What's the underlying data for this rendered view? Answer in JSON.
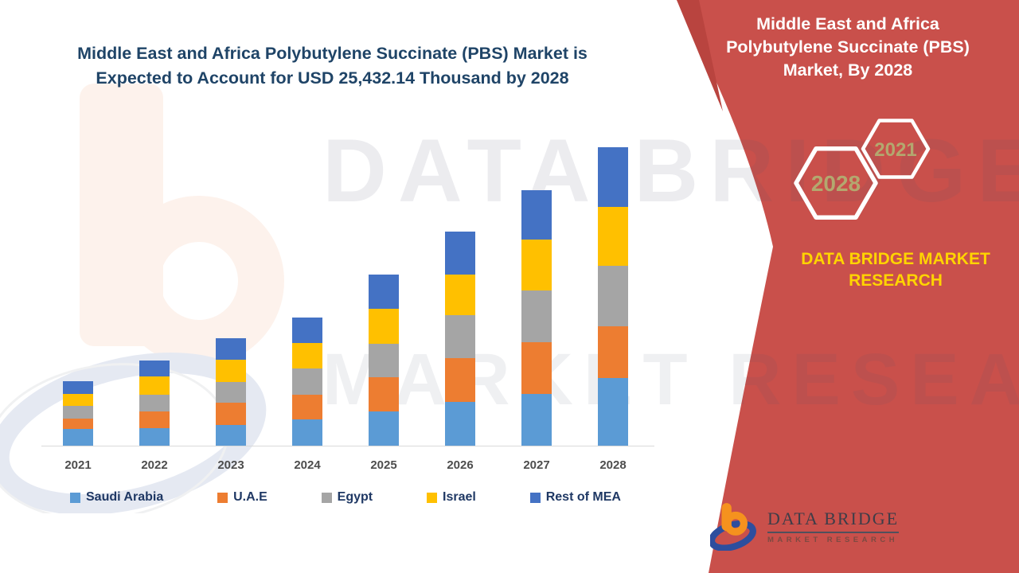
{
  "main_title": {
    "line1": "Middle East and Africa Polybutylene Succinate (PBS) Market is",
    "line2": "Expected to Account for USD 25,432.14 Thousand by 2028"
  },
  "side_panel": {
    "title": "Middle East and Africa Polybutylene Succinate (PBS) Market, By 2028",
    "hexagons": [
      {
        "label": "2021"
      },
      {
        "label": "2028"
      }
    ],
    "brand_line1": "DATA BRIDGE MARKET",
    "brand_line2": "RESEARCH",
    "logo_name": "DATA BRIDGE",
    "logo_sub": "MARKET RESEARCH"
  },
  "watermark": {
    "line1": "DATA BRIDGE",
    "line2": "MARKET RESEARCH"
  },
  "colors": {
    "panel_red": "#c9504b",
    "panel_red_dark": "#b9443f",
    "accent_yellow": "#ffd400",
    "hex_label": "#b3a86f",
    "title_navy": "#1f4467",
    "legend_navy": "#1f3864",
    "axis_label_gray": "#4d4d4d",
    "logo_orange": "#f5921e",
    "logo_blue": "#2d4e9e"
  },
  "chart_data": {
    "type": "bar",
    "stacked": true,
    "title": "Middle East and Africa Polybutylene Succinate (PBS) Market is Expected to Account for USD 25,432.14 Thousand by 2028",
    "unit": "USD Thousand",
    "categories": [
      "2021",
      "2022",
      "2023",
      "2024",
      "2025",
      "2026",
      "2027",
      "2028"
    ],
    "series": [
      {
        "name": "Saudi Arabia",
        "color": "#5B9BD5",
        "values": [
          1424,
          1492,
          1763,
          2238,
          2916,
          3730,
          4408,
          5765
        ]
      },
      {
        "name": "U.A.E",
        "color": "#ED7D31",
        "values": [
          882,
          1424,
          1899,
          2102,
          2916,
          3730,
          4408,
          4408
        ]
      },
      {
        "name": "Egypt",
        "color": "#A5A5A5",
        "values": [
          1085,
          1424,
          1763,
          2238,
          2848,
          3662,
          4408,
          5154
        ]
      },
      {
        "name": "Israel",
        "color": "#FFC000",
        "values": [
          1017,
          1560,
          1899,
          2170,
          2984,
          3459,
          4340,
          5018
        ]
      },
      {
        "name": "Rest of MEA",
        "color": "#4472C4",
        "values": [
          1085,
          1356,
          1831,
          2170,
          2916,
          3662,
          4204,
          5086
        ]
      }
    ],
    "totals_estimated": [
      5493,
      7256,
      9155,
      10918,
      14580,
      18243,
      21768,
      25431
    ],
    "anchor_total_2028": 25432.14,
    "ylim": [
      0,
      26000
    ],
    "grid": false,
    "legend_position": "bottom"
  }
}
